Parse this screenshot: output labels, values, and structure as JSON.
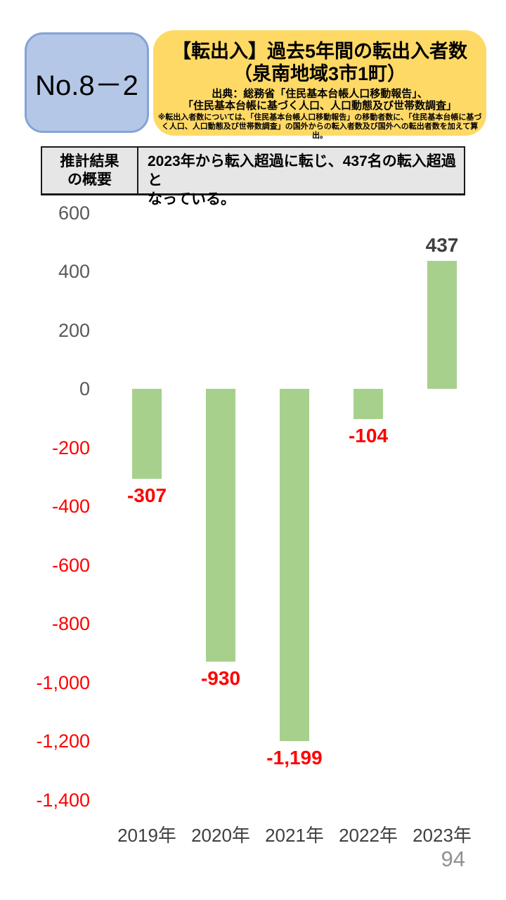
{
  "page": {
    "number": "94"
  },
  "header": {
    "tag": {
      "label": "No.8－2",
      "bg": "#B4C7E7",
      "border": "#85A3D6"
    },
    "title_box": {
      "bg": "#FFD966",
      "title_lines": [
        "【転出入】過去5年間の転出入者数",
        "（泉南地域3市1町）"
      ],
      "source_lines": [
        "出典：総務省「住民基本台帳人口移動報告」、",
        "「住民基本台帳に基づく人口、人口動態及び世帯数調査」"
      ],
      "note": "※転出入者数については、「住民基本台帳人口移動報告」の移動者数に、「住民基本台帳に基づく人口、人口動態及び世帯数調査」の国外からの転入者数及び国外への転出者数を加えて算出。"
    }
  },
  "summary": {
    "cell_bg": "#E7E6E6",
    "header_lines": [
      "推計結果",
      "の概要"
    ],
    "body_lines": [
      "2023年から転入超過に転じ、437名の転入超過と",
      "なっている。"
    ]
  },
  "chart_data": {
    "type": "bar",
    "title": "",
    "xlabel": "",
    "ylabel": "",
    "categories": [
      "2019年",
      "2020年",
      "2021年",
      "2022年",
      "2023年"
    ],
    "values": [
      -307,
      -930,
      -1199,
      -104,
      437
    ],
    "value_labels": [
      "-307",
      "-930",
      "-1,199",
      "-104",
      "437"
    ],
    "y_ticks": [
      {
        "v": 600,
        "label": "600"
      },
      {
        "v": 400,
        "label": "400"
      },
      {
        "v": 200,
        "label": "200"
      },
      {
        "v": 0,
        "label": "0"
      },
      {
        "v": -200,
        "label": "-200"
      },
      {
        "v": -400,
        "label": "-400"
      },
      {
        "v": -600,
        "label": "-600"
      },
      {
        "v": -800,
        "label": "-800"
      },
      {
        "v": -1000,
        "label": "-1,000"
      },
      {
        "v": -1200,
        "label": "-1,200"
      },
      {
        "v": -1400,
        "label": "-1,400"
      }
    ],
    "ylim": [
      -1400,
      600
    ],
    "grid": false,
    "legend": false,
    "bar_color": "#A7D08D",
    "negative_color": "#FF0000",
    "positive_label_color": "#404040",
    "axis_label_color": "#595959",
    "category_label_color": "#3F3F3F"
  }
}
